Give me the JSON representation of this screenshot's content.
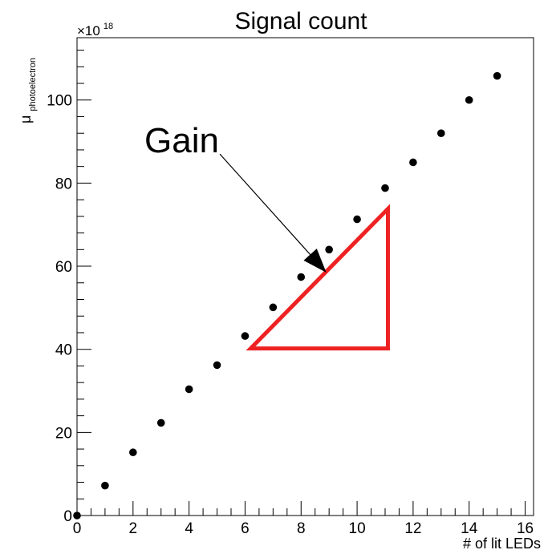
{
  "chart_data": {
    "type": "scatter",
    "title": "Signal count",
    "xlabel": "# of lit LEDs",
    "ylabel_main": "μ",
    "ylabel_sub": "photoelectron",
    "y_multiplier_base": "×10",
    "y_multiplier_exp": "18",
    "xlim": [
      0,
      16.3
    ],
    "ylim": [
      0,
      115
    ],
    "x_ticks": [
      0,
      2,
      4,
      6,
      8,
      10,
      12,
      14,
      16
    ],
    "y_ticks": [
      0,
      20,
      40,
      60,
      80,
      100
    ],
    "x_tick_labels": [
      "0",
      "2",
      "4",
      "6",
      "8",
      "10",
      "12",
      "14",
      "16"
    ],
    "y_tick_labels": [
      "0",
      "20",
      "40",
      "60",
      "80",
      "100"
    ],
    "series": [
      {
        "x": [
          0,
          1,
          2,
          3,
          4,
          5,
          6,
          7,
          8,
          9,
          10,
          11,
          12,
          13,
          14,
          15
        ],
        "y": [
          0,
          7.2,
          15.2,
          22.3,
          30.4,
          36.2,
          43.2,
          50.1,
          57.4,
          64.0,
          71.3,
          78.8,
          85.0,
          92.0,
          100.0,
          105.8
        ]
      }
    ],
    "marker_color": "#000000",
    "grid": false,
    "annotations": {
      "text": "Gain",
      "arrow_from": [
        5.1,
        87
      ],
      "arrow_to": [
        8.9,
        58.5
      ],
      "triangle": [
        [
          6.2,
          40.2
        ],
        [
          11.1,
          73.8
        ],
        [
          11.1,
          40.2
        ]
      ],
      "triangle_color": "#ee2222"
    }
  }
}
